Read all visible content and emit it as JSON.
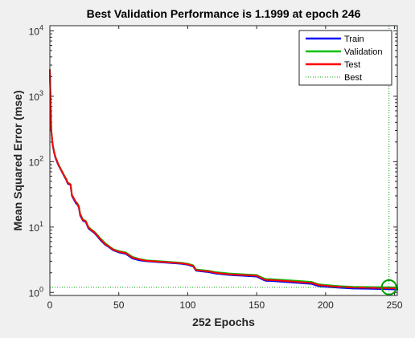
{
  "chart_data": {
    "type": "line",
    "title": "Best Validation Performance is 1.1999 at epoch 246",
    "xlabel": "252 Epochs",
    "ylabel": "Mean Squared Error  (mse)",
    "xlim": [
      0,
      252
    ],
    "ylim": [
      0.9,
      12000
    ],
    "yscale": "log",
    "x_ticks": [
      {
        "value": 0,
        "label": "0"
      },
      {
        "value": 50,
        "label": "50"
      },
      {
        "value": 100,
        "label": "100"
      },
      {
        "value": 150,
        "label": "150"
      },
      {
        "value": 200,
        "label": "200"
      },
      {
        "value": 250,
        "label": "250"
      }
    ],
    "y_ticks": [
      {
        "value": 1,
        "base": "10",
        "exp": "0"
      },
      {
        "value": 10,
        "base": "10",
        "exp": "1"
      },
      {
        "value": 100,
        "base": "10",
        "exp": "2"
      },
      {
        "value": 1000,
        "base": "10",
        "exp": "3"
      },
      {
        "value": 10000,
        "base": "10",
        "exp": "4"
      }
    ],
    "grid": false,
    "legend_position": "top-right",
    "series": [
      {
        "name": "Train",
        "color": "#0000ff",
        "x": [
          0,
          1,
          2,
          3,
          4,
          6,
          8,
          10,
          12,
          13,
          15,
          16,
          18,
          19,
          20,
          21,
          22,
          24,
          26,
          28,
          30,
          32,
          34,
          37,
          40,
          43,
          46,
          50,
          55,
          60,
          65,
          70,
          75,
          80,
          85,
          90,
          95,
          100,
          104,
          106,
          110,
          115,
          120,
          130,
          140,
          150,
          155,
          157,
          160,
          170,
          180,
          190,
          195,
          200,
          210,
          220,
          230,
          240,
          246,
          252
        ],
        "values": [
          2500,
          300,
          180,
          140,
          115,
          90,
          75,
          62,
          52,
          46,
          44,
          30,
          25,
          23,
          22,
          20,
          15,
          12.5,
          12,
          9.5,
          8.8,
          8.2,
          7.4,
          6.2,
          5.4,
          4.9,
          4.4,
          4.1,
          3.9,
          3.3,
          3.1,
          3.0,
          2.95,
          2.9,
          2.85,
          2.8,
          2.75,
          2.65,
          2.5,
          2.15,
          2.1,
          2.05,
          1.95,
          1.85,
          1.8,
          1.75,
          1.55,
          1.5,
          1.5,
          1.45,
          1.4,
          1.35,
          1.25,
          1.22,
          1.18,
          1.15,
          1.14,
          1.13,
          1.12,
          1.11
        ]
      },
      {
        "name": "Validation",
        "color": "#00c000",
        "x": [
          0,
          1,
          2,
          3,
          4,
          6,
          8,
          10,
          12,
          13,
          15,
          16,
          18,
          19,
          20,
          21,
          22,
          24,
          26,
          28,
          30,
          32,
          34,
          37,
          40,
          43,
          46,
          50,
          55,
          60,
          65,
          70,
          75,
          80,
          85,
          90,
          95,
          100,
          104,
          106,
          110,
          115,
          120,
          130,
          140,
          150,
          155,
          157,
          160,
          170,
          180,
          190,
          195,
          200,
          210,
          220,
          230,
          240,
          246,
          252
        ],
        "values": [
          2500,
          310,
          190,
          145,
          120,
          93,
          77,
          64,
          54,
          48,
          45,
          31,
          26,
          24,
          23,
          21,
          16,
          13,
          12.5,
          10,
          9.2,
          8.6,
          7.8,
          6.6,
          5.7,
          5.1,
          4.6,
          4.3,
          4.1,
          3.5,
          3.25,
          3.1,
          3.05,
          3.0,
          2.95,
          2.9,
          2.85,
          2.75,
          2.6,
          2.25,
          2.2,
          2.15,
          2.05,
          1.95,
          1.9,
          1.85,
          1.65,
          1.6,
          1.6,
          1.55,
          1.5,
          1.45,
          1.33,
          1.3,
          1.25,
          1.22,
          1.21,
          1.205,
          1.1999,
          1.2
        ]
      },
      {
        "name": "Test",
        "color": "#ff0000",
        "x": [
          0,
          1,
          2,
          3,
          4,
          6,
          8,
          10,
          12,
          13,
          15,
          16,
          18,
          19,
          20,
          21,
          22,
          24,
          26,
          28,
          30,
          32,
          34,
          37,
          40,
          43,
          46,
          50,
          55,
          60,
          65,
          70,
          75,
          80,
          85,
          90,
          95,
          100,
          104,
          106,
          110,
          115,
          120,
          130,
          140,
          150,
          155,
          157,
          160,
          170,
          180,
          190,
          195,
          200,
          210,
          220,
          230,
          240,
          246,
          252
        ],
        "values": [
          2550,
          305,
          185,
          143,
          118,
          92,
          76,
          63,
          53,
          47,
          45,
          31,
          26,
          24,
          22.5,
          20.5,
          15.5,
          12.8,
          12.3,
          9.8,
          9.0,
          8.4,
          7.6,
          6.4,
          5.5,
          5.0,
          4.5,
          4.2,
          4.0,
          3.4,
          3.2,
          3.05,
          3.0,
          2.95,
          2.9,
          2.85,
          2.8,
          2.7,
          2.55,
          2.2,
          2.15,
          2.1,
          2.0,
          1.9,
          1.85,
          1.8,
          1.6,
          1.55,
          1.55,
          1.5,
          1.45,
          1.4,
          1.3,
          1.27,
          1.22,
          1.19,
          1.18,
          1.17,
          1.16,
          1.15
        ]
      },
      {
        "name": "Best",
        "color": "#00a000",
        "style": "dotted",
        "best_epoch": 246,
        "best_value": 1.1999
      }
    ]
  }
}
